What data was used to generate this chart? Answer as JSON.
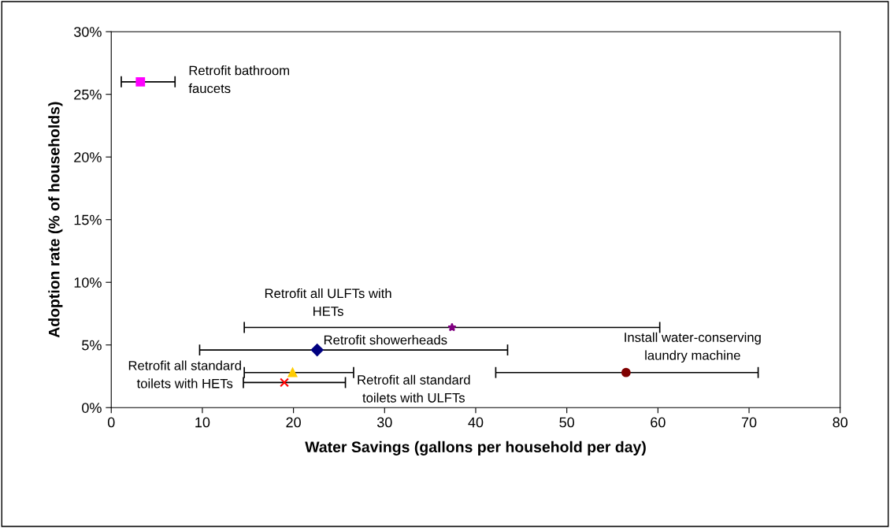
{
  "chart_data": {
    "type": "scatter",
    "xlabel": "Water Savings (gallons per household per day)",
    "ylabel": "Adoption rate (% of households)",
    "xlim": [
      0,
      80
    ],
    "xticks": [
      0,
      10,
      20,
      30,
      40,
      50,
      60,
      70,
      80
    ],
    "ylim": [
      0,
      30
    ],
    "yticks": [
      {
        "value": 0,
        "label": "0%"
      },
      {
        "value": 5,
        "label": "5%"
      },
      {
        "value": 10,
        "label": "10%"
      },
      {
        "value": 15,
        "label": "15%"
      },
      {
        "value": 20,
        "label": "20%"
      },
      {
        "value": 25,
        "label": "25%"
      },
      {
        "value": 30,
        "label": "30%"
      }
    ],
    "grid": false,
    "legend": false,
    "series": [
      {
        "color": "#ff00ff",
        "marker": "square",
        "x": [
          3.2
        ],
        "values": [
          26.0
        ],
        "xerrors": [
          [
            1.1,
            7.0
          ]
        ]
      },
      {
        "color": "#800080",
        "marker": "star",
        "x": [
          37.4
        ],
        "values": [
          6.4
        ],
        "xerrors": [
          [
            14.6,
            60.2
          ]
        ]
      },
      {
        "color": "#000080",
        "marker": "diamond",
        "x": [
          22.6
        ],
        "values": [
          4.6
        ],
        "xerrors": [
          [
            9.7,
            43.5
          ]
        ]
      },
      {
        "color": "#800000",
        "marker": "circle",
        "x": [
          56.5
        ],
        "values": [
          2.8
        ],
        "xerrors": [
          [
            42.2,
            71.0
          ]
        ]
      },
      {
        "color": "#ffcc00",
        "marker": "triangle",
        "x": [
          19.9
        ],
        "values": [
          2.8
        ],
        "xerrors": [
          [
            14.6,
            26.6
          ]
        ]
      },
      {
        "color": "#ff0000",
        "marker": "cross",
        "x": [
          19.0
        ],
        "values": [
          2.0
        ],
        "xerrors": [
          [
            14.5,
            25.7
          ]
        ]
      }
    ],
    "annotations": [
      "Retrofit bathroom\nfaucets",
      "Retrofit all ULFTs with\nHETs",
      "Retrofit showerheads",
      "Install water-conserving\nlaundry machine",
      "Retrofit all standard\ntoilets with HETs",
      "Retrofit all standard\ntoilets with ULFTs"
    ]
  }
}
